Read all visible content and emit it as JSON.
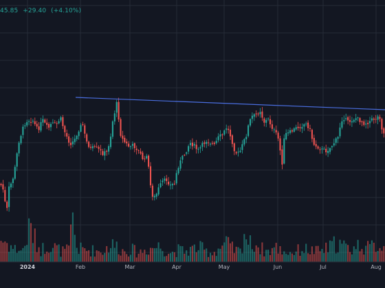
{
  "quote": {
    "price": "45.85",
    "change": "+29.40",
    "change_pct": "(+4.10%)"
  },
  "colors": {
    "background": "#131722",
    "grid": "#262b37",
    "up": "#26a69a",
    "down": "#ef5350",
    "trendline": "#4a6ee0",
    "axis_text": "#b2b5be"
  },
  "chart_data": {
    "type": "candlestick",
    "grid": true,
    "x_ticks": [
      {
        "label": "2024",
        "bold": true
      },
      {
        "label": "Feb"
      },
      {
        "label": "Mar"
      },
      {
        "label": "Apr"
      },
      {
        "label": "May"
      },
      {
        "label": "Jun"
      },
      {
        "label": "Jul"
      },
      {
        "label": "Aug"
      }
    ],
    "price_anchors": [
      [
        0,
        268
      ],
      [
        3,
        272
      ],
      [
        5,
        278
      ],
      [
        8,
        300
      ],
      [
        10,
        308
      ],
      [
        12,
        276
      ],
      [
        18,
        264
      ],
      [
        22,
        244
      ],
      [
        27,
        208
      ],
      [
        35,
        182
      ],
      [
        40,
        175
      ],
      [
        48,
        176
      ],
      [
        55,
        190
      ],
      [
        62,
        175
      ],
      [
        70,
        188
      ],
      [
        75,
        180
      ],
      [
        82,
        182
      ],
      [
        88,
        172
      ],
      [
        94,
        192
      ],
      [
        102,
        210
      ],
      [
        108,
        205
      ],
      [
        114,
        190
      ],
      [
        120,
        180
      ],
      [
        125,
        205
      ],
      [
        132,
        217
      ],
      [
        137,
        215
      ],
      [
        143,
        218
      ],
      [
        150,
        224
      ],
      [
        156,
        221
      ],
      [
        161,
        198
      ],
      [
        164,
        176
      ],
      [
        170,
        150
      ],
      [
        176,
        200
      ],
      [
        182,
        208
      ],
      [
        188,
        214
      ],
      [
        194,
        212
      ],
      [
        200,
        218
      ],
      [
        205,
        226
      ],
      [
        210,
        236
      ],
      [
        214,
        222
      ],
      [
        218,
        266
      ],
      [
        222,
        285
      ],
      [
        226,
        288
      ],
      [
        230,
        276
      ],
      [
        236,
        265
      ],
      [
        242,
        262
      ],
      [
        248,
        270
      ],
      [
        254,
        268
      ],
      [
        258,
        246
      ],
      [
        264,
        232
      ],
      [
        270,
        222
      ],
      [
        276,
        208
      ],
      [
        282,
        212
      ],
      [
        288,
        220
      ],
      [
        294,
        212
      ],
      [
        300,
        205
      ],
      [
        306,
        208
      ],
      [
        312,
        212
      ],
      [
        318,
        200
      ],
      [
        324,
        196
      ],
      [
        330,
        185
      ],
      [
        336,
        200
      ],
      [
        342,
        222
      ],
      [
        348,
        224
      ],
      [
        354,
        208
      ],
      [
        358,
        198
      ],
      [
        362,
        180
      ],
      [
        366,
        170
      ],
      [
        372,
        168
      ],
      [
        378,
        160
      ],
      [
        384,
        178
      ],
      [
        390,
        174
      ],
      [
        396,
        186
      ],
      [
        402,
        196
      ],
      [
        406,
        206
      ],
      [
        410,
        242
      ],
      [
        414,
        196
      ],
      [
        420,
        194
      ],
      [
        426,
        190
      ],
      [
        432,
        186
      ],
      [
        438,
        184
      ],
      [
        444,
        180
      ],
      [
        450,
        186
      ],
      [
        456,
        210
      ],
      [
        462,
        214
      ],
      [
        468,
        218
      ],
      [
        474,
        220
      ],
      [
        480,
        216
      ],
      [
        486,
        208
      ],
      [
        492,
        200
      ],
      [
        496,
        176
      ],
      [
        500,
        172
      ],
      [
        506,
        178
      ],
      [
        512,
        175
      ],
      [
        518,
        172
      ],
      [
        524,
        176
      ],
      [
        530,
        180
      ],
      [
        536,
        178
      ],
      [
        542,
        174
      ],
      [
        548,
        172
      ],
      [
        552,
        168
      ],
      [
        556,
        190
      ],
      [
        560,
        198
      ]
    ],
    "volume_anchors": [
      [
        0,
        0.35
      ],
      [
        6,
        0.32
      ],
      [
        12,
        0.28
      ],
      [
        20,
        0.2
      ],
      [
        34,
        0.18
      ],
      [
        44,
        0.54
      ],
      [
        52,
        0.3
      ],
      [
        60,
        0.18
      ],
      [
        70,
        0.28
      ],
      [
        80,
        0.22
      ],
      [
        90,
        0.16
      ],
      [
        100,
        0.18
      ],
      [
        106,
        0.65
      ],
      [
        112,
        0.2
      ],
      [
        130,
        0.18
      ],
      [
        150,
        0.16
      ],
      [
        160,
        0.26
      ],
      [
        170,
        0.24
      ],
      [
        180,
        0.16
      ],
      [
        190,
        0.2
      ],
      [
        200,
        0.14
      ],
      [
        210,
        0.18
      ],
      [
        222,
        0.22
      ],
      [
        232,
        0.24
      ],
      [
        240,
        0.18
      ],
      [
        250,
        0.14
      ],
      [
        260,
        0.18
      ],
      [
        270,
        0.16
      ],
      [
        280,
        0.2
      ],
      [
        290,
        0.22
      ],
      [
        300,
        0.16
      ],
      [
        310,
        0.14
      ],
      [
        320,
        0.22
      ],
      [
        330,
        0.28
      ],
      [
        340,
        0.18
      ],
      [
        350,
        0.16
      ],
      [
        356,
        0.5
      ],
      [
        362,
        0.26
      ],
      [
        370,
        0.3
      ],
      [
        380,
        0.2
      ],
      [
        390,
        0.16
      ],
      [
        400,
        0.22
      ],
      [
        410,
        0.18
      ],
      [
        420,
        0.14
      ],
      [
        430,
        0.16
      ],
      [
        440,
        0.2
      ],
      [
        450,
        0.18
      ],
      [
        460,
        0.16
      ],
      [
        470,
        0.18
      ],
      [
        480,
        0.22
      ],
      [
        490,
        0.3
      ],
      [
        496,
        0.26
      ],
      [
        506,
        0.2
      ],
      [
        516,
        0.22
      ],
      [
        526,
        0.28
      ],
      [
        536,
        0.2
      ],
      [
        546,
        0.26
      ],
      [
        556,
        0.24
      ],
      [
        560,
        0.2
      ]
    ],
    "trendline": [
      [
        110,
        142
      ],
      [
        560,
        160
      ]
    ]
  }
}
